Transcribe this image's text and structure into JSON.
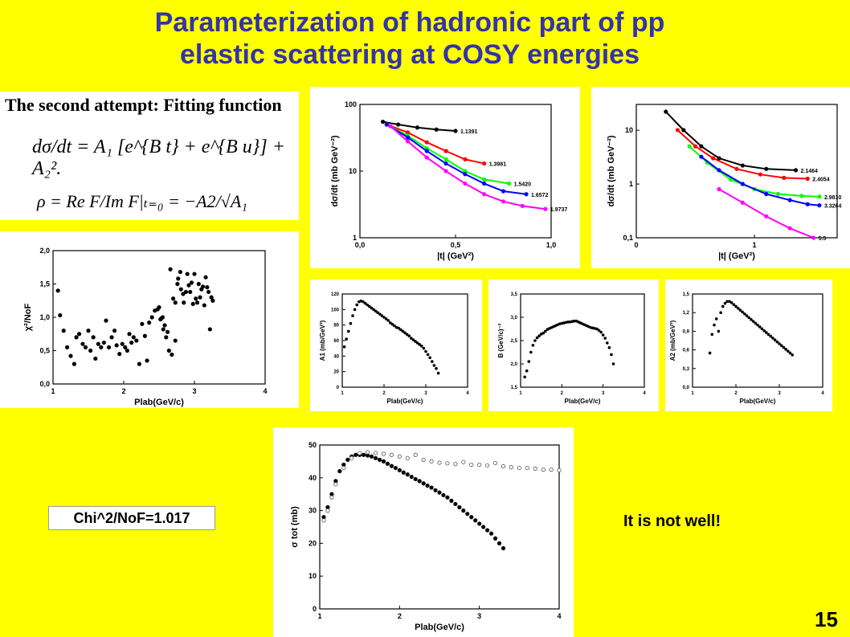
{
  "slide": {
    "title_line1": "Parameterization of hadronic part of pp",
    "title_line2": "elastic scattering at COSY energies",
    "page_number": "15",
    "chi_label": "Chi^2/NoF=1.017",
    "remark": "It is not well!"
  },
  "formula": {
    "heading": "The second attempt: Fitting function",
    "eq1": "dσ/dt = A₁ [e^{B t} + e^{B u}] + A₂².",
    "eq2": "ρ = Re F/Im F|ₜ₌₀ = −A2/√A₁"
  },
  "chart_data": [
    {
      "id": "chi2",
      "type": "scatter",
      "ylabel": "χ²/NoF",
      "xlabel": "Plab(GeV/c)",
      "xlim": [
        1,
        4
      ],
      "ylim": [
        0,
        2
      ],
      "xticks": [
        "1",
        "2",
        "3",
        "4"
      ],
      "yticks": [
        "0,0",
        "0,5",
        "1,0",
        "1,5",
        "2,0"
      ],
      "x": [
        1.07,
        1.1,
        1.15,
        1.2,
        1.25,
        1.3,
        1.33,
        1.37,
        1.42,
        1.46,
        1.5,
        1.53,
        1.57,
        1.6,
        1.64,
        1.68,
        1.72,
        1.75,
        1.79,
        1.83,
        1.87,
        1.9,
        1.94,
        1.98,
        2.02,
        2.05,
        2.08,
        2.11,
        2.14,
        2.18,
        2.22,
        2.26,
        2.3,
        2.33,
        2.36,
        2.4,
        2.44,
        2.48,
        2.5,
        2.52,
        2.55,
        2.58,
        2.62,
        2.66,
        2.7,
        2.73,
        2.76,
        2.8,
        2.84,
        2.88,
        2.92,
        2.96,
        3.0,
        3.04,
        3.08,
        3.12,
        3.16,
        3.2,
        3.24
      ],
      "y": [
        1.4,
        1.03,
        0.8,
        0.55,
        0.42,
        0.3,
        0.7,
        0.75,
        0.6,
        0.55,
        0.8,
        0.5,
        0.7,
        0.38,
        0.6,
        0.55,
        0.62,
        0.95,
        0.55,
        0.7,
        0.8,
        0.58,
        0.45,
        0.6,
        0.55,
        0.5,
        0.75,
        0.62,
        0.7,
        0.65,
        0.3,
        0.9,
        0.72,
        0.35,
        0.92,
        1.0,
        1.1,
        1.12,
        1.15,
        0.97,
        1.0,
        0.88,
        0.78,
        1.72,
        1.28,
        0.65,
        1.5,
        1.68,
        1.35,
        1.38,
        1.48,
        1.52,
        1.65,
        1.22,
        1.3,
        1.46,
        1.6,
        1.38,
        1.3
      ],
      "y2_x": [
        2.53,
        2.56,
        2.6,
        2.64,
        2.68,
        2.73,
        2.77,
        2.81,
        2.85,
        2.9,
        2.94,
        2.98,
        3.02,
        3.06,
        3.1,
        3.14,
        3.18,
        3.22,
        3.26
      ],
      "y2": [
        0.98,
        0.82,
        0.7,
        0.5,
        0.44,
        1.22,
        1.58,
        1.42,
        1.22,
        1.65,
        1.38,
        1.2,
        1.28,
        1.5,
        1.42,
        1.18,
        1.45,
        0.82,
        1.25
      ]
    },
    {
      "id": "dsdt-linear",
      "type": "line",
      "ylabel": "dσ/dt (mb GeV⁻²)",
      "xlabel": "|t| (GeV²)",
      "xlim": [
        0,
        1
      ],
      "ylim": [
        1,
        100
      ],
      "yscale": "log",
      "xticks": [
        "0,0",
        "0,5",
        "1,0"
      ],
      "yticks": [
        "1",
        "10",
        "100"
      ],
      "series": [
        {
          "name": "1.1391",
          "color": "#000000",
          "x": [
            0.12,
            0.2,
            0.3,
            0.4,
            0.5
          ],
          "y": [
            55,
            50,
            45,
            42,
            40
          ]
        },
        {
          "name": "1.3981",
          "color": "#ff0000",
          "x": [
            0.14,
            0.25,
            0.35,
            0.45,
            0.55,
            0.65
          ],
          "y": [
            50,
            38,
            27,
            20,
            15,
            13
          ]
        },
        {
          "name": "1.5420",
          "color": "#00ff00",
          "x": [
            0.14,
            0.25,
            0.35,
            0.45,
            0.55,
            0.65,
            0.78
          ],
          "y": [
            50,
            34,
            22,
            15,
            10,
            7.5,
            6.5
          ]
        },
        {
          "name": "1.6572",
          "color": "#0000ff",
          "x": [
            0.14,
            0.25,
            0.35,
            0.45,
            0.55,
            0.65,
            0.75,
            0.87
          ],
          "y": [
            50,
            32,
            20,
            13,
            9,
            6.5,
            5,
            4.5
          ]
        },
        {
          "name": "1.9737",
          "color": "#ff00ff",
          "x": [
            0.16,
            0.25,
            0.35,
            0.45,
            0.55,
            0.65,
            0.75,
            0.85,
            0.97
          ],
          "y": [
            47,
            28,
            16,
            10,
            6.5,
            4.5,
            3.5,
            3,
            2.7
          ]
        }
      ]
    },
    {
      "id": "dsdt-wide",
      "type": "line",
      "ylabel": "dσ/dt (mb GeV⁻²)",
      "xlabel": "|t| (GeV²)",
      "xlim": [
        0,
        1.7
      ],
      "ylim": [
        0.1,
        30
      ],
      "yscale": "log",
      "xticks": [
        "0",
        "1"
      ],
      "yticks": [
        "0,1",
        "1",
        "10"
      ],
      "series": [
        {
          "name": "2.1464",
          "color": "#000000",
          "x": [
            0.25,
            0.4,
            0.55,
            0.7,
            0.9,
            1.1,
            1.35
          ],
          "y": [
            22,
            10,
            5,
            3,
            2.2,
            1.9,
            1.8
          ]
        },
        {
          "name": "2.4054",
          "color": "#ff0000",
          "x": [
            0.35,
            0.5,
            0.65,
            0.85,
            1.05,
            1.25,
            1.45
          ],
          "y": [
            10,
            5,
            3,
            1.9,
            1.5,
            1.3,
            1.25
          ]
        },
        {
          "name": "2.9810",
          "color": "#00ff00",
          "x": [
            0.45,
            0.6,
            0.8,
            1.0,
            1.2,
            1.4,
            1.55
          ],
          "y": [
            5,
            2.5,
            1.2,
            0.8,
            0.65,
            0.6,
            0.58
          ]
        },
        {
          "name": "3.3264",
          "color": "#0000ff",
          "x": [
            0.55,
            0.7,
            0.9,
            1.1,
            1.3,
            1.45,
            1.55
          ],
          "y": [
            3.2,
            1.8,
            1.0,
            0.65,
            0.5,
            0.42,
            0.4
          ]
        },
        {
          "name": "5.5",
          "color": "#ff00ff",
          "x": [
            0.7,
            0.9,
            1.1,
            1.3,
            1.5
          ],
          "y": [
            0.8,
            0.45,
            0.25,
            0.15,
            0.1
          ]
        }
      ]
    },
    {
      "id": "A1",
      "type": "scatter",
      "ylabel": "A1 (mb/GeV²)",
      "xlabel": "Plab(GeV/c)",
      "xlim": [
        1,
        4
      ],
      "ylim": [
        0,
        120
      ],
      "xticks": [
        "1",
        "2",
        "3",
        "4"
      ],
      "yticks": [
        "0",
        "20",
        "40",
        "60",
        "80",
        "100",
        "120"
      ],
      "x": [
        1.05,
        1.1,
        1.15,
        1.2,
        1.25,
        1.3,
        1.35,
        1.4,
        1.45,
        1.5,
        1.55,
        1.6,
        1.65,
        1.7,
        1.75,
        1.8,
        1.85,
        1.9,
        1.95,
        2.0,
        2.05,
        2.1,
        2.15,
        2.2,
        2.25,
        2.3,
        2.35,
        2.4,
        2.45,
        2.5,
        2.55,
        2.6,
        2.65,
        2.7,
        2.75,
        2.8,
        2.85,
        2.9,
        2.95,
        3.0,
        3.05,
        3.1,
        3.15,
        3.2,
        3.25,
        3.3
      ],
      "y": [
        52,
        62,
        72,
        82,
        92,
        100,
        106,
        110,
        111,
        110,
        108,
        106,
        104,
        102,
        100,
        98,
        96,
        94,
        92,
        90,
        88,
        86,
        83,
        81,
        79,
        77,
        76,
        74,
        72,
        70,
        68,
        66,
        63,
        61,
        59,
        57,
        55,
        53,
        50,
        46,
        42,
        38,
        33,
        28,
        24,
        18
      ]
    },
    {
      "id": "B",
      "type": "scatter",
      "ylabel": "B (GeV/c)⁻²",
      "xlabel": "Plab(GeV/c)",
      "xlim": [
        1,
        4
      ],
      "ylim": [
        1.5,
        3.5
      ],
      "xticks": [
        "1",
        "2",
        "3",
        "4"
      ],
      "yticks": [
        "1,5",
        "2,0",
        "2,5",
        "3,0",
        "3,5"
      ],
      "x": [
        1.1,
        1.15,
        1.2,
        1.25,
        1.3,
        1.35,
        1.4,
        1.45,
        1.5,
        1.55,
        1.6,
        1.65,
        1.7,
        1.75,
        1.8,
        1.85,
        1.9,
        1.95,
        2.0,
        2.05,
        2.1,
        2.15,
        2.2,
        2.25,
        2.3,
        2.35,
        2.4,
        2.45,
        2.5,
        2.55,
        2.6,
        2.65,
        2.7,
        2.75,
        2.8,
        2.85,
        2.9,
        2.95,
        3.0,
        3.05,
        3.1,
        3.15,
        3.2,
        3.25
      ],
      "y": [
        1.72,
        1.85,
        2.05,
        2.25,
        2.4,
        2.5,
        2.56,
        2.6,
        2.64,
        2.66,
        2.7,
        2.74,
        2.76,
        2.78,
        2.8,
        2.82,
        2.84,
        2.86,
        2.87,
        2.88,
        2.89,
        2.9,
        2.9,
        2.91,
        2.92,
        2.92,
        2.9,
        2.88,
        2.86,
        2.84,
        2.82,
        2.8,
        2.78,
        2.77,
        2.76,
        2.75,
        2.72,
        2.68,
        2.62,
        2.55,
        2.45,
        2.35,
        2.2,
        2.0
      ]
    },
    {
      "id": "A2",
      "type": "scatter",
      "ylabel": "A2 (mb/GeV²)",
      "xlabel": "Plab(GeV/c)",
      "xlim": [
        1,
        4
      ],
      "ylim": [
        0,
        1.5
      ],
      "xticks": [
        "1",
        "2",
        "3",
        "4"
      ],
      "yticks": [
        "0,0",
        "0,3",
        "0,6",
        "0,9",
        "1,2",
        "1,5"
      ],
      "x": [
        1.4,
        1.45,
        1.5,
        1.55,
        1.6,
        1.65,
        1.7,
        1.75,
        1.8,
        1.85,
        1.9,
        1.95,
        2.0,
        2.05,
        2.1,
        2.15,
        2.2,
        2.25,
        2.3,
        2.35,
        2.4,
        2.45,
        2.5,
        2.55,
        2.6,
        2.65,
        2.7,
        2.75,
        2.8,
        2.85,
        2.9,
        2.95,
        3.0,
        3.05,
        3.1,
        3.15,
        3.2,
        3.25,
        3.3
      ],
      "y": [
        0.55,
        0.85,
        1.0,
        1.1,
        0.9,
        1.2,
        1.3,
        1.35,
        1.38,
        1.38,
        1.36,
        1.33,
        1.3,
        1.27,
        1.24,
        1.21,
        1.18,
        1.15,
        1.12,
        1.09,
        1.06,
        1.03,
        1.0,
        0.97,
        0.94,
        0.91,
        0.88,
        0.85,
        0.82,
        0.79,
        0.76,
        0.73,
        0.7,
        0.67,
        0.64,
        0.61,
        0.58,
        0.55,
        0.52
      ]
    },
    {
      "id": "sigma-tot",
      "type": "scatter",
      "ylabel": "σ tot (mb)",
      "xlabel": "Plab(GeV/c)",
      "xlim": [
        1,
        4
      ],
      "ylim": [
        0,
        50
      ],
      "xticks": [
        "1",
        "2",
        "3",
        "4"
      ],
      "yticks": [
        "0",
        "10",
        "20",
        "30",
        "40",
        "50"
      ],
      "series": [
        {
          "name": "",
          "marker": "filled",
          "x": [
            1.05,
            1.1,
            1.15,
            1.2,
            1.25,
            1.3,
            1.35,
            1.4,
            1.45,
            1.5,
            1.55,
            1.6,
            1.65,
            1.7,
            1.75,
            1.8,
            1.85,
            1.9,
            1.95,
            2.0,
            2.05,
            2.1,
            2.15,
            2.2,
            2.25,
            2.3,
            2.35,
            2.4,
            2.45,
            2.5,
            2.55,
            2.6,
            2.65,
            2.7,
            2.75,
            2.8,
            2.85,
            2.9,
            2.95,
            3.0,
            3.05,
            3.1,
            3.15,
            3.2,
            3.25,
            3.3
          ],
          "y": [
            28,
            31,
            35,
            39,
            42,
            44,
            45.5,
            46.5,
            47,
            47,
            47,
            46.8,
            46.5,
            46,
            45.5,
            45,
            44.3,
            43.6,
            43,
            42.3,
            41.6,
            41,
            40.3,
            39.6,
            39,
            38.3,
            37.6,
            37,
            36.2,
            35.5,
            34.7,
            34,
            33,
            32,
            31,
            30,
            29,
            28,
            27,
            26,
            25,
            24,
            23,
            21.5,
            20,
            18.5
          ]
        },
        {
          "name": "",
          "marker": "open",
          "x": [
            1.05,
            1.1,
            1.15,
            1.2,
            1.3,
            1.4,
            1.5,
            1.6,
            1.7,
            1.8,
            1.9,
            2.0,
            2.1,
            2.2,
            2.3,
            2.4,
            2.5,
            2.6,
            2.7,
            2.8,
            2.9,
            3.0,
            3.1,
            3.2,
            3.3,
            3.4,
            3.5,
            3.6,
            3.7,
            3.8,
            3.9,
            4.0
          ],
          "y": [
            27,
            30,
            34,
            38,
            43,
            46,
            47.5,
            47.8,
            47.6,
            47.3,
            47,
            46.5,
            46,
            47,
            45.5,
            45,
            44.6,
            44.4,
            44.2,
            44.8,
            44,
            44,
            43.8,
            44.5,
            43.5,
            43.2,
            43,
            43,
            42.8,
            42.5,
            42.5,
            42.3
          ]
        }
      ]
    }
  ]
}
